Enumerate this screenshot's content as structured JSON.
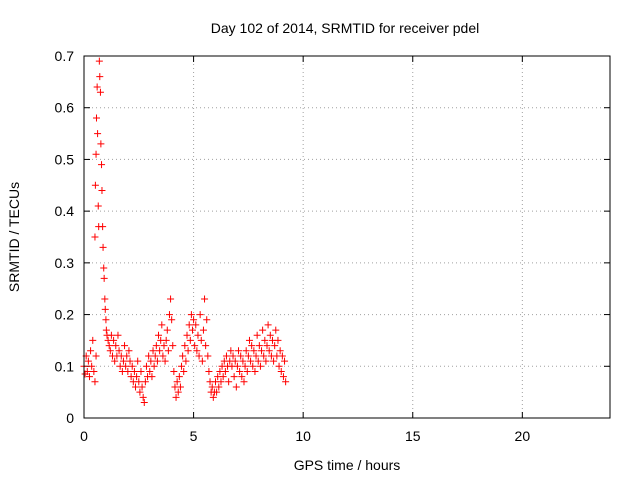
{
  "chart_data": {
    "type": "scatter",
    "title": "Day 102 of 2014, SRMTID for receiver pdel",
    "xlabel": "GPS time / hours",
    "ylabel": "SRMTID / TECUs",
    "xlim": [
      0,
      24
    ],
    "ylim": [
      0,
      0.7
    ],
    "xticks": [
      0,
      5,
      10,
      15,
      20
    ],
    "yticks": [
      0,
      0.1,
      0.2,
      0.3,
      0.4,
      0.5,
      0.6,
      0.7
    ],
    "xtick_labels": [
      "0",
      "5",
      "10",
      "15",
      "20"
    ],
    "ytick_labels": [
      "0",
      "0.1",
      "0.2",
      "0.3",
      "0.4",
      "0.5",
      "0.6",
      "0.7"
    ],
    "grid": true,
    "marker": "+",
    "series": [
      {
        "name": "SRMTID",
        "color": "#ff0000",
        "points": [
          [
            0.0,
            0.1
          ],
          [
            0.05,
            0.085
          ],
          [
            0.1,
            0.12
          ],
          [
            0.15,
            0.09
          ],
          [
            0.2,
            0.11
          ],
          [
            0.25,
            0.08
          ],
          [
            0.3,
            0.13
          ],
          [
            0.35,
            0.1
          ],
          [
            0.4,
            0.15
          ],
          [
            0.45,
            0.09
          ],
          [
            0.5,
            0.07
          ],
          [
            0.55,
            0.12
          ],
          [
            0.5,
            0.35
          ],
          [
            0.52,
            0.45
          ],
          [
            0.55,
            0.51
          ],
          [
            0.57,
            0.58
          ],
          [
            0.6,
            0.64
          ],
          [
            0.62,
            0.55
          ],
          [
            0.65,
            0.41
          ],
          [
            0.67,
            0.37
          ],
          [
            0.7,
            0.69
          ],
          [
            0.72,
            0.66
          ],
          [
            0.75,
            0.63
          ],
          [
            0.77,
            0.53
          ],
          [
            0.8,
            0.49
          ],
          [
            0.82,
            0.44
          ],
          [
            0.85,
            0.37
          ],
          [
            0.87,
            0.33
          ],
          [
            0.9,
            0.29
          ],
          [
            0.92,
            0.27
          ],
          [
            0.95,
            0.23
          ],
          [
            0.97,
            0.21
          ],
          [
            1.0,
            0.19
          ],
          [
            1.02,
            0.17
          ],
          [
            1.05,
            0.16
          ],
          [
            1.1,
            0.15
          ],
          [
            1.15,
            0.14
          ],
          [
            1.2,
            0.13
          ],
          [
            1.25,
            0.16
          ],
          [
            1.3,
            0.12
          ],
          [
            1.35,
            0.15
          ],
          [
            1.4,
            0.11
          ],
          [
            1.45,
            0.14
          ],
          [
            1.5,
            0.12
          ],
          [
            1.55,
            0.16
          ],
          [
            1.6,
            0.13
          ],
          [
            1.65,
            0.1
          ],
          [
            1.7,
            0.12
          ],
          [
            1.75,
            0.09
          ],
          [
            1.8,
            0.11
          ],
          [
            1.85,
            0.14
          ],
          [
            1.9,
            0.1
          ],
          [
            1.95,
            0.12
          ],
          [
            2.0,
            0.09
          ],
          [
            2.05,
            0.13
          ],
          [
            2.1,
            0.11
          ],
          [
            2.15,
            0.08
          ],
          [
            2.2,
            0.1
          ],
          [
            2.25,
            0.07
          ],
          [
            2.3,
            0.09
          ],
          [
            2.35,
            0.06
          ],
          [
            2.4,
            0.08
          ],
          [
            2.45,
            0.11
          ],
          [
            2.5,
            0.07
          ],
          [
            2.55,
            0.05
          ],
          [
            2.6,
            0.09
          ],
          [
            2.65,
            0.06
          ],
          [
            2.7,
            0.04
          ],
          [
            2.75,
            0.03
          ],
          [
            2.8,
            0.07
          ],
          [
            2.85,
            0.1
          ],
          [
            2.9,
            0.08
          ],
          [
            2.95,
            0.12
          ],
          [
            3.0,
            0.09
          ],
          [
            3.05,
            0.11
          ],
          [
            3.1,
            0.08
          ],
          [
            3.15,
            0.13
          ],
          [
            3.2,
            0.1
          ],
          [
            3.25,
            0.12
          ],
          [
            3.3,
            0.14
          ],
          [
            3.35,
            0.11
          ],
          [
            3.4,
            0.16
          ],
          [
            3.45,
            0.13
          ],
          [
            3.5,
            0.15
          ],
          [
            3.55,
            0.18
          ],
          [
            3.6,
            0.12
          ],
          [
            3.65,
            0.14
          ],
          [
            3.7,
            0.11
          ],
          [
            3.75,
            0.15
          ],
          [
            3.8,
            0.17
          ],
          [
            3.85,
            0.13
          ],
          [
            3.9,
            0.2
          ],
          [
            3.95,
            0.23
          ],
          [
            4.0,
            0.19
          ],
          [
            4.05,
            0.14
          ],
          [
            4.1,
            0.09
          ],
          [
            4.15,
            0.06
          ],
          [
            4.2,
            0.04
          ],
          [
            4.25,
            0.07
          ],
          [
            4.3,
            0.05
          ],
          [
            4.35,
            0.08
          ],
          [
            4.4,
            0.06
          ],
          [
            4.45,
            0.1
          ],
          [
            4.5,
            0.12
          ],
          [
            4.55,
            0.09
          ],
          [
            4.6,
            0.14
          ],
          [
            4.65,
            0.11
          ],
          [
            4.7,
            0.16
          ],
          [
            4.75,
            0.13
          ],
          [
            4.8,
            0.18
          ],
          [
            4.85,
            0.15
          ],
          [
            4.9,
            0.2
          ],
          [
            4.95,
            0.17
          ],
          [
            5.0,
            0.19
          ],
          [
            5.05,
            0.14
          ],
          [
            5.1,
            0.18
          ],
          [
            5.15,
            0.13
          ],
          [
            5.2,
            0.16
          ],
          [
            5.25,
            0.12
          ],
          [
            5.3,
            0.2
          ],
          [
            5.35,
            0.15
          ],
          [
            5.4,
            0.11
          ],
          [
            5.45,
            0.17
          ],
          [
            5.5,
            0.23
          ],
          [
            5.55,
            0.14
          ],
          [
            5.6,
            0.19
          ],
          [
            5.65,
            0.12
          ],
          [
            5.7,
            0.09
          ],
          [
            5.75,
            0.07
          ],
          [
            5.8,
            0.05
          ],
          [
            5.85,
            0.06
          ],
          [
            5.9,
            0.04
          ],
          [
            5.95,
            0.05
          ],
          [
            6.0,
            0.07
          ],
          [
            6.05,
            0.05
          ],
          [
            6.1,
            0.08
          ],
          [
            6.15,
            0.06
          ],
          [
            6.2,
            0.09
          ],
          [
            6.25,
            0.07
          ],
          [
            6.3,
            0.1
          ],
          [
            6.35,
            0.08
          ],
          [
            6.4,
            0.11
          ],
          [
            6.45,
            0.09
          ],
          [
            6.5,
            0.12
          ],
          [
            6.55,
            0.1
          ],
          [
            6.6,
            0.07
          ],
          [
            6.65,
            0.11
          ],
          [
            6.7,
            0.13
          ],
          [
            6.75,
            0.1
          ],
          [
            6.8,
            0.12
          ],
          [
            6.85,
            0.08
          ],
          [
            6.9,
            0.11
          ],
          [
            6.95,
            0.06
          ],
          [
            7.0,
            0.1
          ],
          [
            7.05,
            0.13
          ],
          [
            7.1,
            0.09
          ],
          [
            7.15,
            0.12
          ],
          [
            7.2,
            0.08
          ],
          [
            7.25,
            0.11
          ],
          [
            7.3,
            0.07
          ],
          [
            7.35,
            0.1
          ],
          [
            7.4,
            0.13
          ],
          [
            7.45,
            0.09
          ],
          [
            7.5,
            0.12
          ],
          [
            7.55,
            0.15
          ],
          [
            7.6,
            0.11
          ],
          [
            7.65,
            0.14
          ],
          [
            7.7,
            0.1
          ],
          [
            7.75,
            0.13
          ],
          [
            7.8,
            0.09
          ],
          [
            7.85,
            0.12
          ],
          [
            7.9,
            0.16
          ],
          [
            7.95,
            0.11
          ],
          [
            8.0,
            0.14
          ],
          [
            8.05,
            0.1
          ],
          [
            8.1,
            0.13
          ],
          [
            8.15,
            0.17
          ],
          [
            8.2,
            0.12
          ],
          [
            8.25,
            0.15
          ],
          [
            8.3,
            0.11
          ],
          [
            8.35,
            0.14
          ],
          [
            8.4,
            0.18
          ],
          [
            8.45,
            0.13
          ],
          [
            8.5,
            0.16
          ],
          [
            8.55,
            0.12
          ],
          [
            8.6,
            0.15
          ],
          [
            8.65,
            0.11
          ],
          [
            8.7,
            0.14
          ],
          [
            8.75,
            0.17
          ],
          [
            8.8,
            0.12
          ],
          [
            8.85,
            0.15
          ],
          [
            8.9,
            0.1
          ],
          [
            8.95,
            0.13
          ],
          [
            9.0,
            0.09
          ],
          [
            9.05,
            0.12
          ],
          [
            9.1,
            0.08
          ],
          [
            9.15,
            0.11
          ],
          [
            9.2,
            0.07
          ]
        ]
      }
    ]
  }
}
